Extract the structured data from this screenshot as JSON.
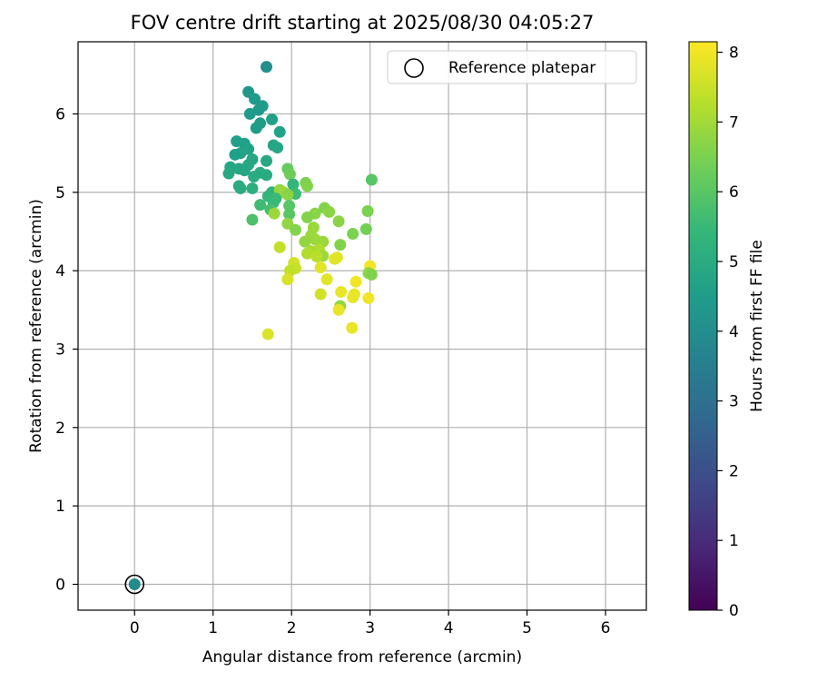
{
  "chart_data": {
    "type": "scatter",
    "title": "FOV centre drift starting at 2025/08/30 04:05:27",
    "xlabel": "Angular distance from reference (arcmin)",
    "ylabel": "Rotation from reference (arcmin)",
    "xlim": [
      -0.72,
      6.52
    ],
    "ylim": [
      -0.33,
      6.92
    ],
    "xticks": [
      0,
      1,
      2,
      3,
      4,
      5,
      6
    ],
    "yticks": [
      0,
      1,
      2,
      3,
      4,
      5,
      6
    ],
    "grid": true,
    "legend": {
      "position": "top-right",
      "entries": [
        {
          "label": "Reference platepar",
          "marker": "open-circle"
        }
      ]
    },
    "colorbar": {
      "label": "Hours from first FF file",
      "colormap": "viridis",
      "range": [
        0,
        8.15
      ],
      "ticks": [
        0,
        1,
        2,
        3,
        4,
        5,
        6,
        7,
        8
      ]
    },
    "reference_point": {
      "x": 0,
      "y": 0,
      "c": 3.9
    },
    "points": [
      {
        "x": 1.68,
        "y": 6.6,
        "c": 4.0
      },
      {
        "x": 1.45,
        "y": 6.28,
        "c": 4.3
      },
      {
        "x": 1.53,
        "y": 6.19,
        "c": 4.4
      },
      {
        "x": 1.63,
        "y": 6.1,
        "c": 4.5
      },
      {
        "x": 1.58,
        "y": 6.05,
        "c": 4.4
      },
      {
        "x": 1.47,
        "y": 6.0,
        "c": 4.4
      },
      {
        "x": 1.75,
        "y": 5.93,
        "c": 4.6
      },
      {
        "x": 1.6,
        "y": 5.88,
        "c": 4.5
      },
      {
        "x": 1.55,
        "y": 5.82,
        "c": 4.5
      },
      {
        "x": 1.85,
        "y": 5.77,
        "c": 4.7
      },
      {
        "x": 1.3,
        "y": 5.65,
        "c": 4.6
      },
      {
        "x": 1.4,
        "y": 5.62,
        "c": 4.6
      },
      {
        "x": 1.77,
        "y": 5.6,
        "c": 4.8
      },
      {
        "x": 1.82,
        "y": 5.57,
        "c": 4.8
      },
      {
        "x": 1.45,
        "y": 5.55,
        "c": 4.7
      },
      {
        "x": 1.35,
        "y": 5.5,
        "c": 4.7
      },
      {
        "x": 1.28,
        "y": 5.48,
        "c": 4.6
      },
      {
        "x": 1.5,
        "y": 5.42,
        "c": 4.8
      },
      {
        "x": 1.68,
        "y": 5.4,
        "c": 4.9
      },
      {
        "x": 1.45,
        "y": 5.35,
        "c": 4.9
      },
      {
        "x": 1.22,
        "y": 5.32,
        "c": 4.8
      },
      {
        "x": 1.33,
        "y": 5.3,
        "c": 4.8
      },
      {
        "x": 1.4,
        "y": 5.28,
        "c": 4.8
      },
      {
        "x": 1.95,
        "y": 5.3,
        "c": 6.2
      },
      {
        "x": 1.2,
        "y": 5.24,
        "c": 4.9
      },
      {
        "x": 1.6,
        "y": 5.25,
        "c": 5.0
      },
      {
        "x": 1.68,
        "y": 5.22,
        "c": 5.0
      },
      {
        "x": 1.52,
        "y": 5.2,
        "c": 5.0
      },
      {
        "x": 1.98,
        "y": 5.23,
        "c": 6.3
      },
      {
        "x": 2.02,
        "y": 5.1,
        "c": 5.4
      },
      {
        "x": 2.18,
        "y": 5.12,
        "c": 6.5
      },
      {
        "x": 2.2,
        "y": 5.08,
        "c": 6.6
      },
      {
        "x": 3.02,
        "y": 5.16,
        "c": 6.0
      },
      {
        "x": 1.33,
        "y": 5.08,
        "c": 5.0
      },
      {
        "x": 1.35,
        "y": 5.05,
        "c": 5.0
      },
      {
        "x": 1.5,
        "y": 5.05,
        "c": 5.1
      },
      {
        "x": 1.75,
        "y": 5.0,
        "c": 5.3
      },
      {
        "x": 1.85,
        "y": 5.03,
        "c": 6.8
      },
      {
        "x": 1.9,
        "y": 5.0,
        "c": 6.9
      },
      {
        "x": 2.05,
        "y": 4.98,
        "c": 5.6
      },
      {
        "x": 1.95,
        "y": 4.97,
        "c": 6.7
      },
      {
        "x": 1.7,
        "y": 4.95,
        "c": 5.4
      },
      {
        "x": 1.8,
        "y": 4.92,
        "c": 5.5
      },
      {
        "x": 1.77,
        "y": 4.87,
        "c": 5.5
      },
      {
        "x": 1.6,
        "y": 4.84,
        "c": 5.6
      },
      {
        "x": 1.97,
        "y": 4.83,
        "c": 6.0
      },
      {
        "x": 1.73,
        "y": 4.78,
        "c": 5.7
      },
      {
        "x": 1.78,
        "y": 4.73,
        "c": 6.9
      },
      {
        "x": 1.97,
        "y": 4.72,
        "c": 6.0
      },
      {
        "x": 2.42,
        "y": 4.8,
        "c": 6.6
      },
      {
        "x": 2.48,
        "y": 4.75,
        "c": 6.7
      },
      {
        "x": 2.3,
        "y": 4.73,
        "c": 6.7
      },
      {
        "x": 2.2,
        "y": 4.68,
        "c": 6.6
      },
      {
        "x": 1.5,
        "y": 4.65,
        "c": 5.8
      },
      {
        "x": 2.6,
        "y": 4.63,
        "c": 6.7
      },
      {
        "x": 2.97,
        "y": 4.76,
        "c": 6.5
      },
      {
        "x": 1.95,
        "y": 4.6,
        "c": 6.8
      },
      {
        "x": 2.28,
        "y": 4.55,
        "c": 6.9
      },
      {
        "x": 2.05,
        "y": 4.52,
        "c": 6.6
      },
      {
        "x": 2.95,
        "y": 4.53,
        "c": 6.4
      },
      {
        "x": 2.78,
        "y": 4.47,
        "c": 6.5
      },
      {
        "x": 2.25,
        "y": 4.45,
        "c": 6.9
      },
      {
        "x": 2.3,
        "y": 4.4,
        "c": 6.9
      },
      {
        "x": 2.4,
        "y": 4.37,
        "c": 6.9
      },
      {
        "x": 2.17,
        "y": 4.37,
        "c": 6.8
      },
      {
        "x": 2.62,
        "y": 4.33,
        "c": 6.6
      },
      {
        "x": 1.85,
        "y": 4.3,
        "c": 7.4
      },
      {
        "x": 2.35,
        "y": 4.27,
        "c": 7.2
      },
      {
        "x": 2.25,
        "y": 4.25,
        "c": 7.1
      },
      {
        "x": 2.2,
        "y": 4.22,
        "c": 7.2
      },
      {
        "x": 2.4,
        "y": 4.19,
        "c": 6.9
      },
      {
        "x": 2.32,
        "y": 4.18,
        "c": 7.3
      },
      {
        "x": 2.58,
        "y": 4.17,
        "c": 7.8
      },
      {
        "x": 2.55,
        "y": 4.15,
        "c": 7.8
      },
      {
        "x": 2.03,
        "y": 4.1,
        "c": 7.6
      },
      {
        "x": 3.0,
        "y": 4.06,
        "c": 8.0
      },
      {
        "x": 2.37,
        "y": 4.04,
        "c": 7.8
      },
      {
        "x": 2.05,
        "y": 4.03,
        "c": 7.5
      },
      {
        "x": 1.98,
        "y": 4.0,
        "c": 7.4
      },
      {
        "x": 2.98,
        "y": 3.97,
        "c": 6.8
      },
      {
        "x": 3.02,
        "y": 3.95,
        "c": 6.6
      },
      {
        "x": 2.45,
        "y": 3.89,
        "c": 7.8
      },
      {
        "x": 1.95,
        "y": 3.89,
        "c": 7.7
      },
      {
        "x": 2.82,
        "y": 3.86,
        "c": 8.0
      },
      {
        "x": 2.63,
        "y": 3.73,
        "c": 7.9
      },
      {
        "x": 2.8,
        "y": 3.7,
        "c": 7.9
      },
      {
        "x": 2.37,
        "y": 3.7,
        "c": 7.6
      },
      {
        "x": 2.78,
        "y": 3.66,
        "c": 7.9
      },
      {
        "x": 2.98,
        "y": 3.65,
        "c": 8.0
      },
      {
        "x": 2.62,
        "y": 3.55,
        "c": 6.8
      },
      {
        "x": 2.6,
        "y": 3.5,
        "c": 7.9
      },
      {
        "x": 2.77,
        "y": 3.27,
        "c": 7.9
      },
      {
        "x": 1.7,
        "y": 3.19,
        "c": 7.7
      }
    ]
  },
  "colors": {
    "grid": "#b0b0b0",
    "axis": "#000000",
    "viridis": [
      "#440154",
      "#482878",
      "#3e4989",
      "#31688e",
      "#26828e",
      "#1f9e89",
      "#35b779",
      "#6ece58",
      "#b5de2b",
      "#fde725"
    ]
  }
}
